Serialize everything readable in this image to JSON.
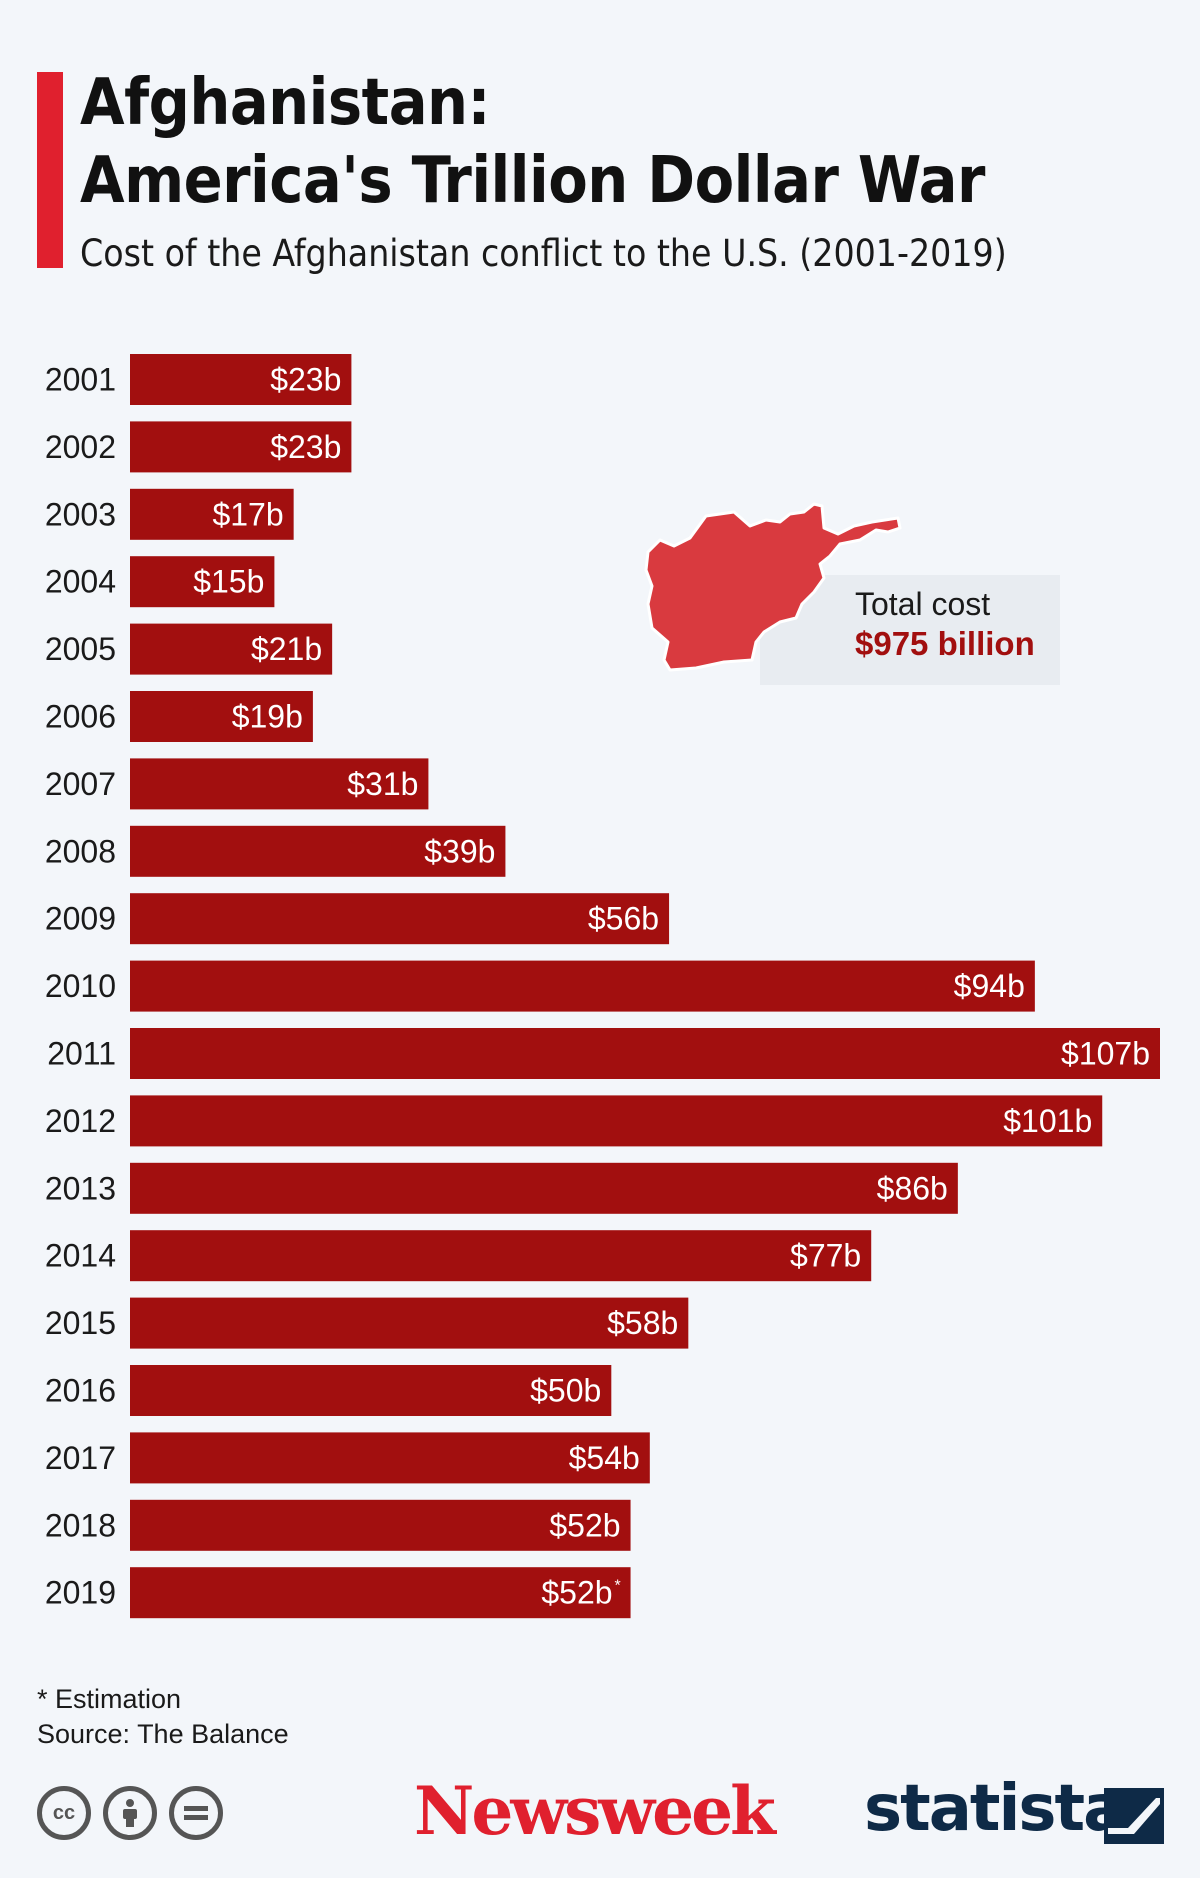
{
  "header": {
    "title_line1": "Afghanistan:",
    "title_line2": "America's Trillion Dollar War",
    "subtitle": "Cost of the Afghanistan conflict to the U.S. (2001-2019)"
  },
  "callout": {
    "label": "Total cost",
    "value": "$975 billion"
  },
  "footer": {
    "note": "* Estimation",
    "source": "Source: The Balance",
    "newsweek": "Newsweek",
    "statista": "statista"
  },
  "colors": {
    "bar": "#a20f0f",
    "accent": "#e0202e",
    "map": "#d93a3f",
    "background": "#f3f6fa"
  },
  "icons": [
    "cc-icon",
    "attribution-icon",
    "no-derivatives-icon",
    "statista-mark-icon",
    "afghanistan-map-icon"
  ],
  "chart_data": {
    "type": "bar",
    "orientation": "horizontal",
    "categories": [
      "2001",
      "2002",
      "2003",
      "2004",
      "2005",
      "2006",
      "2007",
      "2008",
      "2009",
      "2010",
      "2011",
      "2012",
      "2013",
      "2014",
      "2015",
      "2016",
      "2017",
      "2018",
      "2019"
    ],
    "values": [
      23,
      23,
      17,
      15,
      21,
      19,
      31,
      39,
      56,
      94,
      107,
      101,
      86,
      77,
      58,
      50,
      54,
      52,
      52
    ],
    "labels": [
      "$23b",
      "$23b",
      "$17b",
      "$15b",
      "$21b",
      "$19b",
      "$31b",
      "$39b",
      "$56b",
      "$94b",
      "$107b",
      "$101b",
      "$86b",
      "$77b",
      "$58b",
      "$50b",
      "$54b",
      "$52b",
      "$52b"
    ],
    "label_marks": [
      "",
      "",
      "",
      "",
      "",
      "",
      "",
      "",
      "",
      "",
      "",
      "",
      "",
      "",
      "",
      "",
      "",
      "",
      "*"
    ],
    "xlim": [
      0,
      107
    ],
    "grid": false,
    "legend": "none"
  }
}
